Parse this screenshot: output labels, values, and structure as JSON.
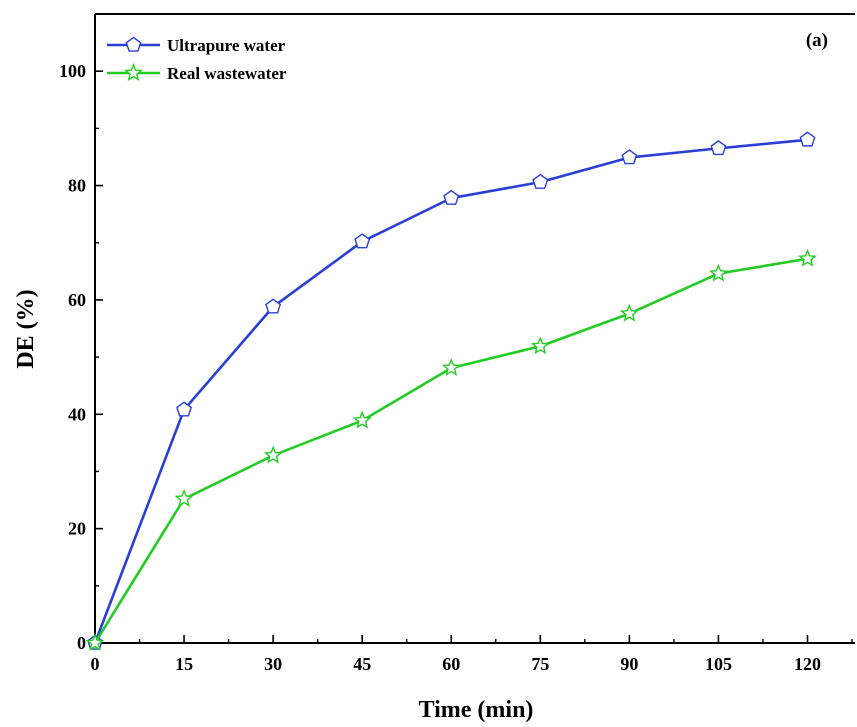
{
  "chart_data": {
    "type": "line",
    "panel_label": "(a)",
    "xlabel": "Time (min)",
    "ylabel": "DE (%)",
    "xlim": [
      0,
      128
    ],
    "ylim": [
      0,
      110
    ],
    "xticks": [
      0,
      15,
      30,
      45,
      60,
      75,
      90,
      105,
      120
    ],
    "yticks": [
      0,
      20,
      40,
      60,
      80,
      100
    ],
    "grid": false,
    "legend_position": "top-left",
    "series": [
      {
        "name": "Ultrapure water",
        "color": "#2a3fd6",
        "marker": "pentagon",
        "x": [
          0,
          15,
          30,
          45,
          60,
          75,
          90,
          105,
          120
        ],
        "values": [
          0,
          40.8,
          58.8,
          70.2,
          77.8,
          80.6,
          84.9,
          86.5,
          88.0
        ]
      },
      {
        "name": "Real wastewater",
        "color": "#22cc22",
        "marker": "star",
        "x": [
          0,
          15,
          30,
          45,
          60,
          75,
          90,
          105,
          120
        ],
        "values": [
          0,
          25.2,
          32.8,
          38.9,
          48.1,
          51.9,
          57.6,
          64.6,
          67.2
        ]
      }
    ]
  }
}
